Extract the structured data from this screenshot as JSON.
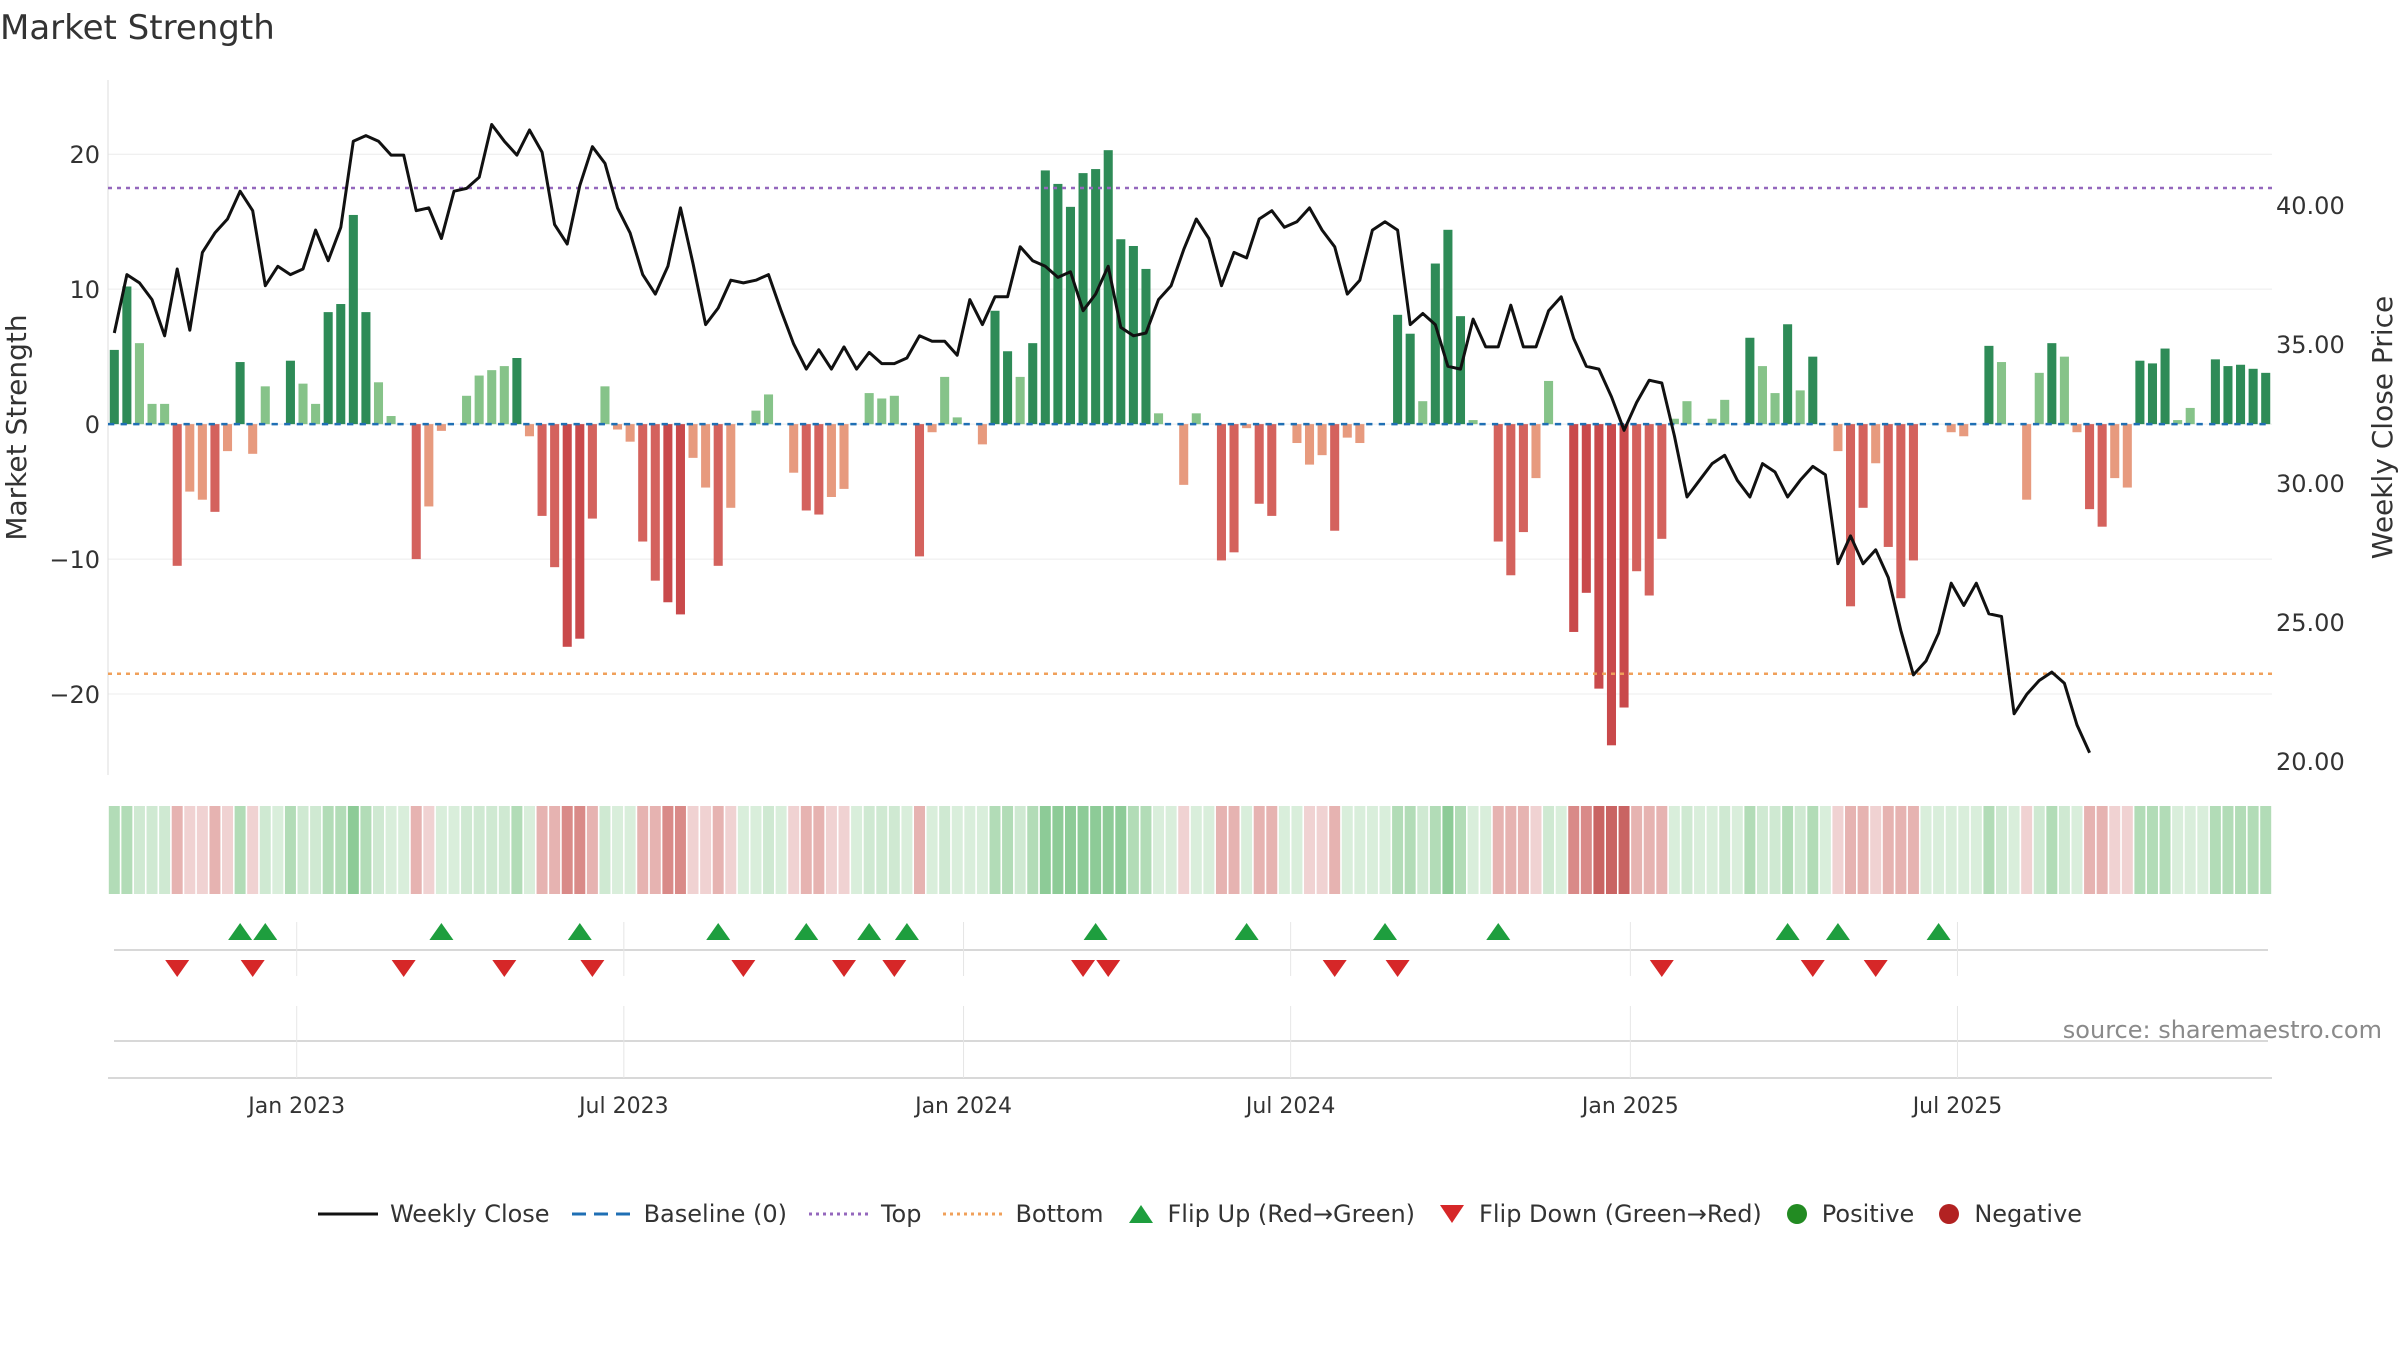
{
  "title": "Market Strength",
  "source_text": "source: sharemaestro.com",
  "colors": {
    "pos_strong": "#2e8b57",
    "pos_mid": "#4aa868",
    "pos_light": "#86c389",
    "neg_strong": "#c9494b",
    "neg_mid": "#d4625d",
    "neg_light": "#e79a7e",
    "price": "#111111",
    "baseline": "#1f6fb4",
    "top": "#9467bd",
    "bottom": "#f0a05a",
    "flip_up": "#1e9e3e",
    "flip_down": "#d62728",
    "positive_dot": "#228b22",
    "negative_dot": "#b22222"
  },
  "legend": [
    {
      "key": "close",
      "label": "Weekly Close"
    },
    {
      "key": "baseline",
      "label": "Baseline (0)"
    },
    {
      "key": "top",
      "label": "Top"
    },
    {
      "key": "bottom",
      "label": "Bottom"
    },
    {
      "key": "flipup",
      "label": "Flip Up (Red→Green)"
    },
    {
      "key": "flipdown",
      "label": "Flip Down (Green→Red)"
    },
    {
      "key": "positive",
      "label": "Positive"
    },
    {
      "key": "negative",
      "label": "Negative"
    }
  ],
  "chart_data": {
    "type": "bar",
    "title": "Market Strength",
    "ylabel": "Market Strength",
    "y2label": "Weekly Close Price",
    "ylim": [
      -26,
      25.5
    ],
    "y2lim": [
      19.5,
      44.5
    ],
    "yticks": [
      20,
      10,
      0,
      -10,
      -20
    ],
    "ytick_labels": [
      "20",
      "10",
      "0",
      "−10",
      "−20"
    ],
    "y2ticks": [
      40,
      35,
      30,
      25,
      20
    ],
    "y2tick_labels": [
      "40.00",
      "35.00",
      "30.00",
      "25.00",
      "20.00"
    ],
    "top_level": 17.5,
    "bottom_level": -18.5,
    "x_tick_labels": [
      "Jan 2023",
      "Jul 2023",
      "Jan 2024",
      "Jul 2024",
      "Jan 2025",
      "Jul 2025"
    ],
    "x_tick_weeks": [
      15,
      41,
      68,
      94,
      121,
      147
    ],
    "strength": [
      5.5,
      10.2,
      6,
      1.5,
      1.5,
      -10.5,
      -5,
      -5.6,
      -6.5,
      -2,
      4.6,
      -2.2,
      2.8,
      0,
      4.7,
      3,
      1.5,
      8.3,
      8.9,
      15.5,
      8.3,
      3.1,
      0.6,
      0,
      -10,
      -6.1,
      -0.5,
      0,
      2.1,
      3.6,
      4,
      4.3,
      4.9,
      -0.9,
      -6.8,
      -10.6,
      -16.5,
      -15.9,
      -7,
      2.8,
      -0.4,
      -1.3,
      -8.7,
      -11.6,
      -13.2,
      -14.1,
      -2.5,
      -4.7,
      -10.5,
      -6.2,
      0,
      1,
      2.2,
      0,
      -3.6,
      -6.4,
      -6.7,
      -5.4,
      -4.8,
      0,
      2.3,
      1.9,
      2.1,
      0,
      -9.8,
      -0.6,
      3.5,
      0.5,
      0,
      -1.5,
      8.4,
      5.4,
      3.5,
      6,
      18.8,
      17.8,
      16.1,
      18.6,
      18.9,
      20.3,
      13.7,
      13.2,
      11.5,
      0.8,
      0,
      -4.5,
      0.8,
      0,
      -10.1,
      -9.5,
      -0.3,
      -5.9,
      -6.8,
      0,
      -1.4,
      -3,
      -2.3,
      -7.9,
      -1,
      -1.4,
      0,
      0,
      8.1,
      6.7,
      1.7,
      11.9,
      14.4,
      8,
      0.3,
      0,
      -8.7,
      -11.2,
      -8,
      -4,
      3.2,
      0,
      -15.4,
      -12.5,
      -19.6,
      -23.8,
      -21,
      -10.9,
      -12.7,
      -8.5,
      0.4,
      1.7,
      0,
      0.4,
      1.8,
      0,
      6.4,
      4.3,
      2.3,
      7.4,
      2.5,
      5,
      0,
      -2,
      -13.5,
      -6.2,
      -2.9,
      -9.1,
      -12.9,
      -10.1,
      0,
      0,
      -0.6,
      -0.9,
      0,
      5.8,
      4.6,
      0,
      -5.6,
      3.8,
      6,
      5,
      -0.6,
      -6.3,
      -7.6,
      -4,
      -4.7,
      4.7,
      4.5,
      5.6,
      0.3,
      1.2,
      0,
      4.8,
      4.3,
      4.4,
      4.1,
      3.8
    ],
    "price": [
      35.4,
      37.5,
      37.2,
      36.6,
      35.3,
      37.7,
      35.5,
      38.3,
      39,
      39.5,
      40.5,
      39.8,
      37.1,
      37.8,
      37.5,
      37.7,
      39.1,
      38,
      39.2,
      42.3,
      42.5,
      42.3,
      41.8,
      41.8,
      39.8,
      39.9,
      38.8,
      40.5,
      40.6,
      41,
      42.9,
      42.3,
      41.8,
      42.7,
      41.9,
      39.3,
      38.6,
      40.7,
      42.1,
      41.5,
      39.9,
      39,
      37.5,
      36.8,
      37.8,
      39.9,
      37.9,
      35.7,
      36.3,
      37.3,
      37.2,
      37.3,
      37.5,
      36.2,
      35,
      34.1,
      34.8,
      34.1,
      34.9,
      34.1,
      34.7,
      34.3,
      34.3,
      34.5,
      35.3,
      35.1,
      35.1,
      34.6,
      36.6,
      35.7,
      36.7,
      36.7,
      38.5,
      38,
      37.8,
      37.4,
      37.6,
      36.2,
      36.8,
      37.8,
      35.6,
      35.3,
      35.4,
      36.6,
      37.1,
      38.4,
      39.5,
      38.8,
      37.1,
      38.3,
      38.1,
      39.5,
      39.8,
      39.2,
      39.4,
      39.9,
      39.1,
      38.5,
      36.8,
      37.3,
      39.1,
      39.4,
      39.1,
      35.7,
      36.1,
      35.7,
      34.2,
      34.1,
      35.9,
      34.9,
      34.9,
      36.4,
      34.9,
      34.9,
      36.2,
      36.7,
      35.2,
      34.2,
      34.1,
      33.1,
      31.9,
      32.9,
      33.7,
      33.6,
      31.7,
      29.5,
      30.1,
      30.7,
      31,
      30.1,
      29.5,
      30.7,
      30.4,
      29.5,
      30.1,
      30.6,
      30.3,
      27.1,
      28.1,
      27.1,
      27.6,
      26.6,
      24.7,
      23.1,
      23.6,
      24.6,
      26.4,
      25.6,
      26.4,
      25.3,
      25.2,
      21.7,
      22.4,
      22.9,
      23.2,
      22.8,
      21.3,
      20.3
    ],
    "heat_levels": [
      2,
      2,
      1,
      1,
      1,
      -2,
      -1,
      -1,
      -2,
      -1,
      2,
      -1,
      1,
      0,
      2,
      1,
      1,
      2,
      2,
      3,
      2,
      1,
      0,
      0,
      -2,
      -1,
      0,
      0,
      1,
      1,
      1,
      1,
      2,
      0,
      -2,
      -2,
      -3,
      -3,
      -2,
      1,
      0,
      0,
      -2,
      -2,
      -3,
      -3,
      -1,
      -1,
      -2,
      -1,
      0,
      0,
      1,
      0,
      -1,
      -2,
      -2,
      -1,
      -1,
      0,
      1,
      1,
      1,
      0,
      -2,
      0,
      1,
      0,
      0,
      0,
      2,
      2,
      1,
      2,
      3,
      3,
      3,
      3,
      3,
      3,
      3,
      2,
      2,
      0,
      0,
      -1,
      0,
      0,
      -2,
      -2,
      0,
      -2,
      -2,
      0,
      0,
      -1,
      -1,
      -2,
      0,
      0,
      0,
      0,
      2,
      2,
      1,
      2,
      3,
      2,
      0,
      0,
      -2,
      -2,
      -2,
      -1,
      1,
      0,
      -3,
      -3,
      -4,
      -4,
      -4,
      -2,
      -2,
      -2,
      0,
      1,
      0,
      0,
      1,
      0,
      2,
      1,
      1,
      2,
      1,
      2,
      0,
      -1,
      -2,
      -2,
      -1,
      -2,
      -2,
      -2,
      0,
      0,
      0,
      0,
      0,
      2,
      1,
      0,
      -1,
      1,
      2,
      1,
      0,
      -2,
      -2,
      -1,
      -1,
      2,
      2,
      2,
      0,
      0,
      0,
      2,
      2,
      2,
      2,
      2
    ],
    "flips_up": [
      10,
      12,
      26,
      37,
      48,
      55,
      60,
      63,
      78,
      90,
      101,
      110,
      133,
      137,
      145
    ],
    "flips_down": [
      5,
      11,
      23,
      31,
      38,
      50,
      58,
      62,
      77,
      79,
      97,
      102,
      123,
      135,
      140
    ]
  }
}
